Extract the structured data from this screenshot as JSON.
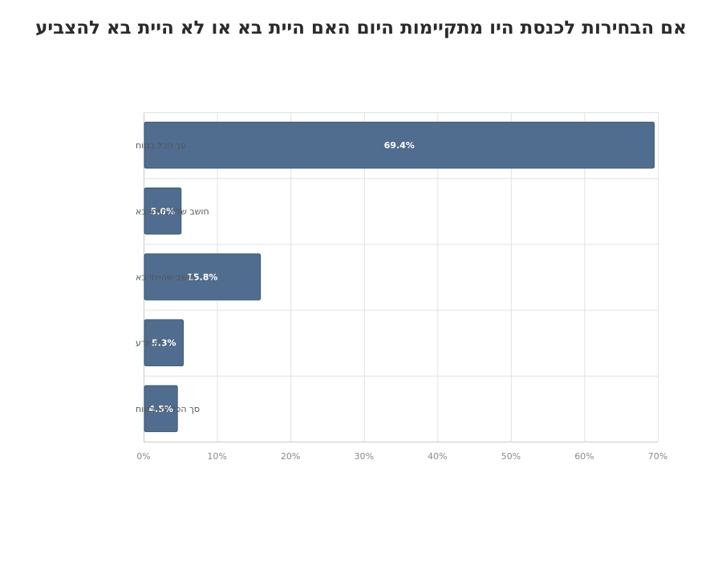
{
  "chart_data": {
    "type": "bar",
    "orientation": "horizontal",
    "title": "אם הבחירות לכנסת היו מתקיימות היום האם היית בא או לא היית בא להצביע",
    "categories": [
      "סך הכל בטוח",
      "חושב שלא הייתי בא",
      "חושב שהייתי בא",
      "לא יודע",
      "סך הכל לא בטוח"
    ],
    "values": [
      69.4,
      5.0,
      15.8,
      5.3,
      4.5
    ],
    "data_labels": [
      "69.4%",
      "5.0%",
      "15.8%",
      "5.3%",
      "4.5%"
    ],
    "xlim": [
      0,
      70
    ],
    "x_ticks": [
      0,
      10,
      20,
      30,
      40,
      50,
      60,
      70
    ],
    "x_tick_labels": [
      "0%",
      "10%",
      "20%",
      "30%",
      "40%",
      "50%",
      "60%",
      "70%"
    ],
    "xlabel": "",
    "ylabel": "",
    "grid": true,
    "legend": "none",
    "bar_color": "#506d8f"
  }
}
